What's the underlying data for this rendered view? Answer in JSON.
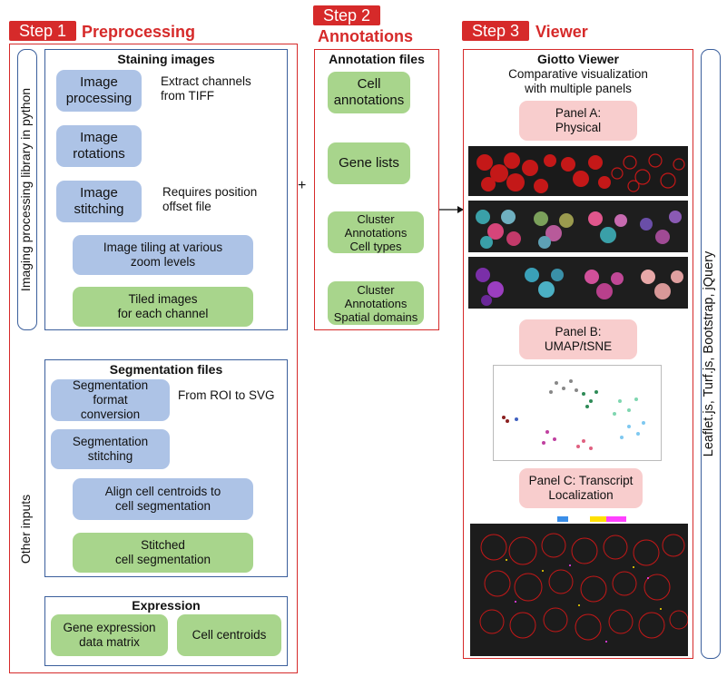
{
  "step1": {
    "badge": "Step 1",
    "title": "Preprocessing"
  },
  "step2": {
    "badge": "Step 2",
    "title": "Annotations"
  },
  "step3": {
    "badge": "Step 3",
    "title": "Viewer"
  },
  "left_labels": {
    "imaging": "Imaging processing library in python",
    "other": "Other inputs"
  },
  "staining": {
    "title": "Staining images",
    "image_processing": "Image\nprocessing",
    "image_processing_note": "Extract channels\nfrom TIFF",
    "image_rotations": "Image\nrotations",
    "image_stitching": "Image\nstitching",
    "image_stitching_note": "Requires position\noffset file",
    "image_tiling": "Image tiling at various\nzoom levels",
    "tiled_images": "Tiled images\nfor each channel"
  },
  "segmentation": {
    "title": "Segmentation files",
    "format_conversion": "Segmentation\nformat\nconversion",
    "format_note": "From ROI to SVG",
    "stitching": "Segmentation\nstitching",
    "align": "Align cell centroids to\ncell segmentation",
    "stitched": "Stitched\ncell segmentation"
  },
  "expression": {
    "title": "Expression",
    "gene_matrix": "Gene expression\ndata matrix",
    "cell_centroids": "Cell centroids"
  },
  "plus_sign": "+",
  "annotations": {
    "title": "Annotation files",
    "cell_annotations": "Cell\nannotations",
    "gene_lists": "Gene lists",
    "cluster_cell_types": "Cluster\nAnnotations\nCell types",
    "cluster_spatial": "Cluster\nAnnotations\nSpatial domains"
  },
  "viewer": {
    "title": "Giotto Viewer",
    "subtitle": "Comparative visualization\nwith multiple panels",
    "panel_a": "Panel A:\nPhysical",
    "panel_b": "Panel B:\nUMAP/tSNE",
    "panel_c": "Panel C: Transcript\nLocalization"
  },
  "tech_label": "Leaflet.js, Turf.js, Bootstrap, jQuery",
  "colors": {
    "red": "#d62a2a",
    "blue_pill": "#adc3e6",
    "green_pill": "#a8d58c",
    "pink_pill": "#f8cdcd",
    "border_blue": "#3b5f9c"
  }
}
